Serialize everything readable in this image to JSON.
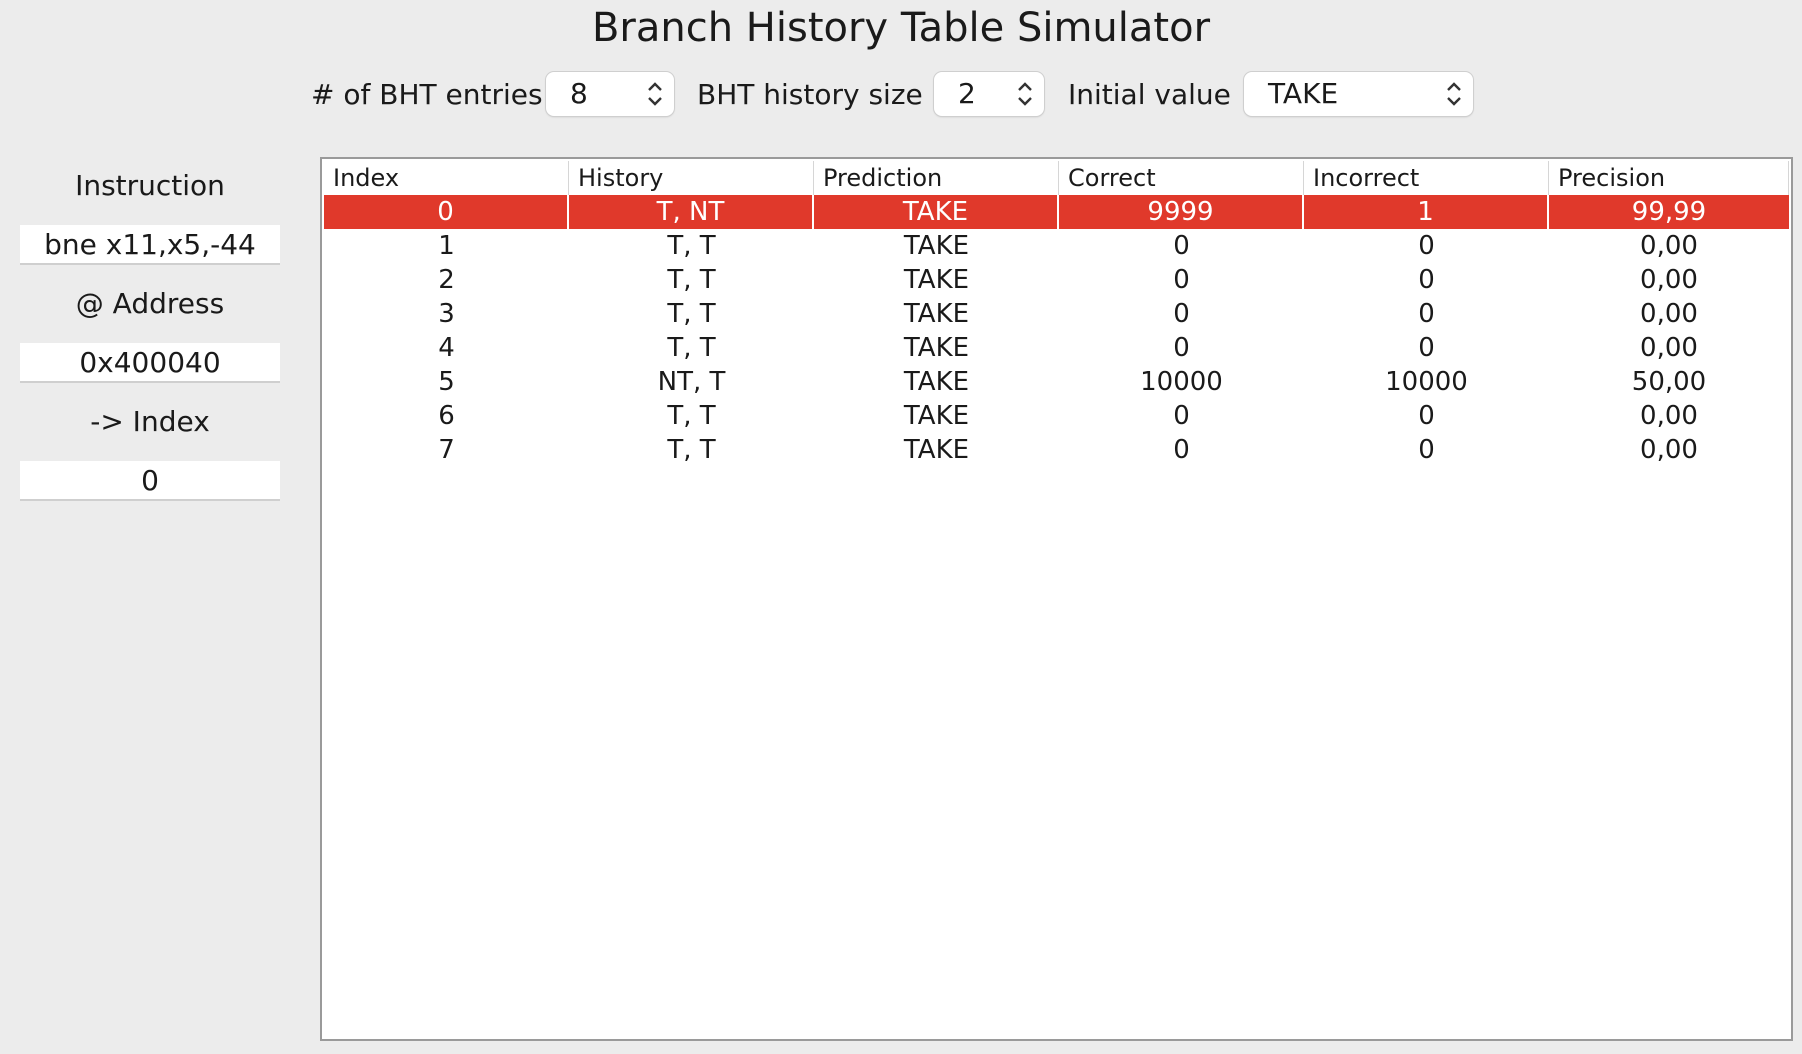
{
  "window": {
    "title": "Branch History Table Simulator"
  },
  "controls": {
    "entries_label": "# of BHT entries",
    "entries_value": "8",
    "history_label": "BHT history size",
    "history_value": "2",
    "initial_label": "Initial value",
    "initial_value": "TAKE"
  },
  "sidebar": {
    "instruction_label": "Instruction",
    "instruction_value": "bne x11,x5,-44",
    "address_label": "@ Address",
    "address_value": "0x400040",
    "index_label": "-> Index",
    "index_value": "0"
  },
  "table": {
    "columns": [
      "Index",
      "History",
      "Prediction",
      "Correct",
      "Incorrect",
      "Precision"
    ],
    "selected_row": 0,
    "rows": [
      [
        "0",
        "T, NT",
        "TAKE",
        "9999",
        "1",
        "99,99"
      ],
      [
        "1",
        "T, T",
        "TAKE",
        "0",
        "0",
        "0,00"
      ],
      [
        "2",
        "T, T",
        "TAKE",
        "0",
        "0",
        "0,00"
      ],
      [
        "3",
        "T, T",
        "TAKE",
        "0",
        "0",
        "0,00"
      ],
      [
        "4",
        "T, T",
        "TAKE",
        "0",
        "0",
        "0,00"
      ],
      [
        "5",
        "NT, T",
        "TAKE",
        "10000",
        "10000",
        "50,00"
      ],
      [
        "6",
        "T, T",
        "TAKE",
        "0",
        "0",
        "0,00"
      ],
      [
        "7",
        "T, T",
        "TAKE",
        "0",
        "0",
        "0,00"
      ]
    ]
  },
  "colors": {
    "selection": "#e0392b",
    "background": "#ececec"
  }
}
